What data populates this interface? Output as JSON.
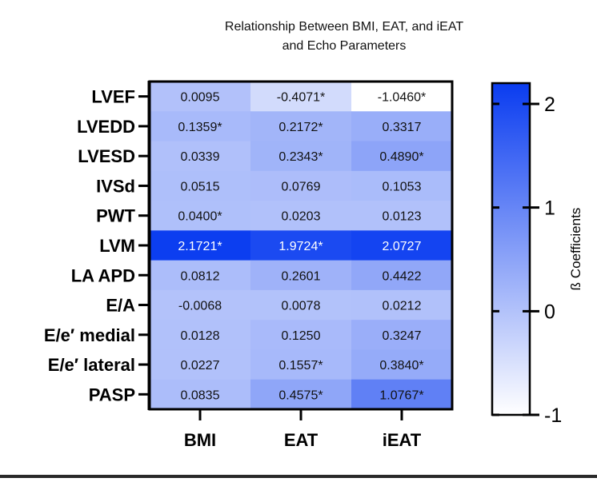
{
  "chart_data": {
    "type": "heatmap",
    "title_lines": [
      "Relationship Between BMI, EAT,  and iEAT",
      "and Echo Parameters"
    ],
    "columns": [
      "BMI",
      "EAT",
      "iEAT"
    ],
    "rows": [
      "LVEF",
      "LVEDD",
      "LVESD",
      "IVSd",
      "PWT",
      "LVM",
      "LA APD",
      "E/A",
      "E/e′ medial",
      "E/e′ lateral",
      "PASP"
    ],
    "values": [
      [
        0.0095,
        -0.4071,
        -1.046
      ],
      [
        0.1359,
        0.2172,
        0.3317
      ],
      [
        0.0339,
        0.2343,
        0.489
      ],
      [
        0.0515,
        0.0769,
        0.1053
      ],
      [
        0.04,
        0.0203,
        0.0123
      ],
      [
        2.1721,
        1.9724,
        2.0727
      ],
      [
        0.0812,
        0.2601,
        0.4422
      ],
      [
        -0.0068,
        0.0078,
        0.0212
      ],
      [
        0.0128,
        0.125,
        0.3247
      ],
      [
        0.0227,
        0.1557,
        0.384
      ],
      [
        0.0835,
        0.4575,
        1.0767
      ]
    ],
    "labels": [
      [
        "0.0095",
        "-0.4071*",
        "-1.0460*"
      ],
      [
        "0.1359*",
        "0.2172*",
        "0.3317"
      ],
      [
        "0.0339",
        "0.2343*",
        "0.4890*"
      ],
      [
        "0.0515",
        "0.0769",
        "0.1053"
      ],
      [
        "0.0400*",
        "0.0203",
        "0.0123"
      ],
      [
        "2.1721*",
        "1.9724*",
        "2.0727"
      ],
      [
        "0.0812",
        "0.2601",
        "0.4422"
      ],
      [
        "-0.0068",
        "0.0078",
        "0.0212"
      ],
      [
        "0.0128",
        "0.1250",
        "0.3247"
      ],
      [
        "0.0227",
        "0.1557*",
        "0.3840*"
      ],
      [
        "0.0835",
        "0.4575*",
        "1.0767*"
      ]
    ],
    "colorbar": {
      "label": "ß  Coefficients",
      "range": [
        -1,
        2.2
      ],
      "ticks": [
        -1,
        0,
        1,
        2
      ],
      "low_color": "#ffffff",
      "high_color": "#0a3cf0"
    }
  }
}
